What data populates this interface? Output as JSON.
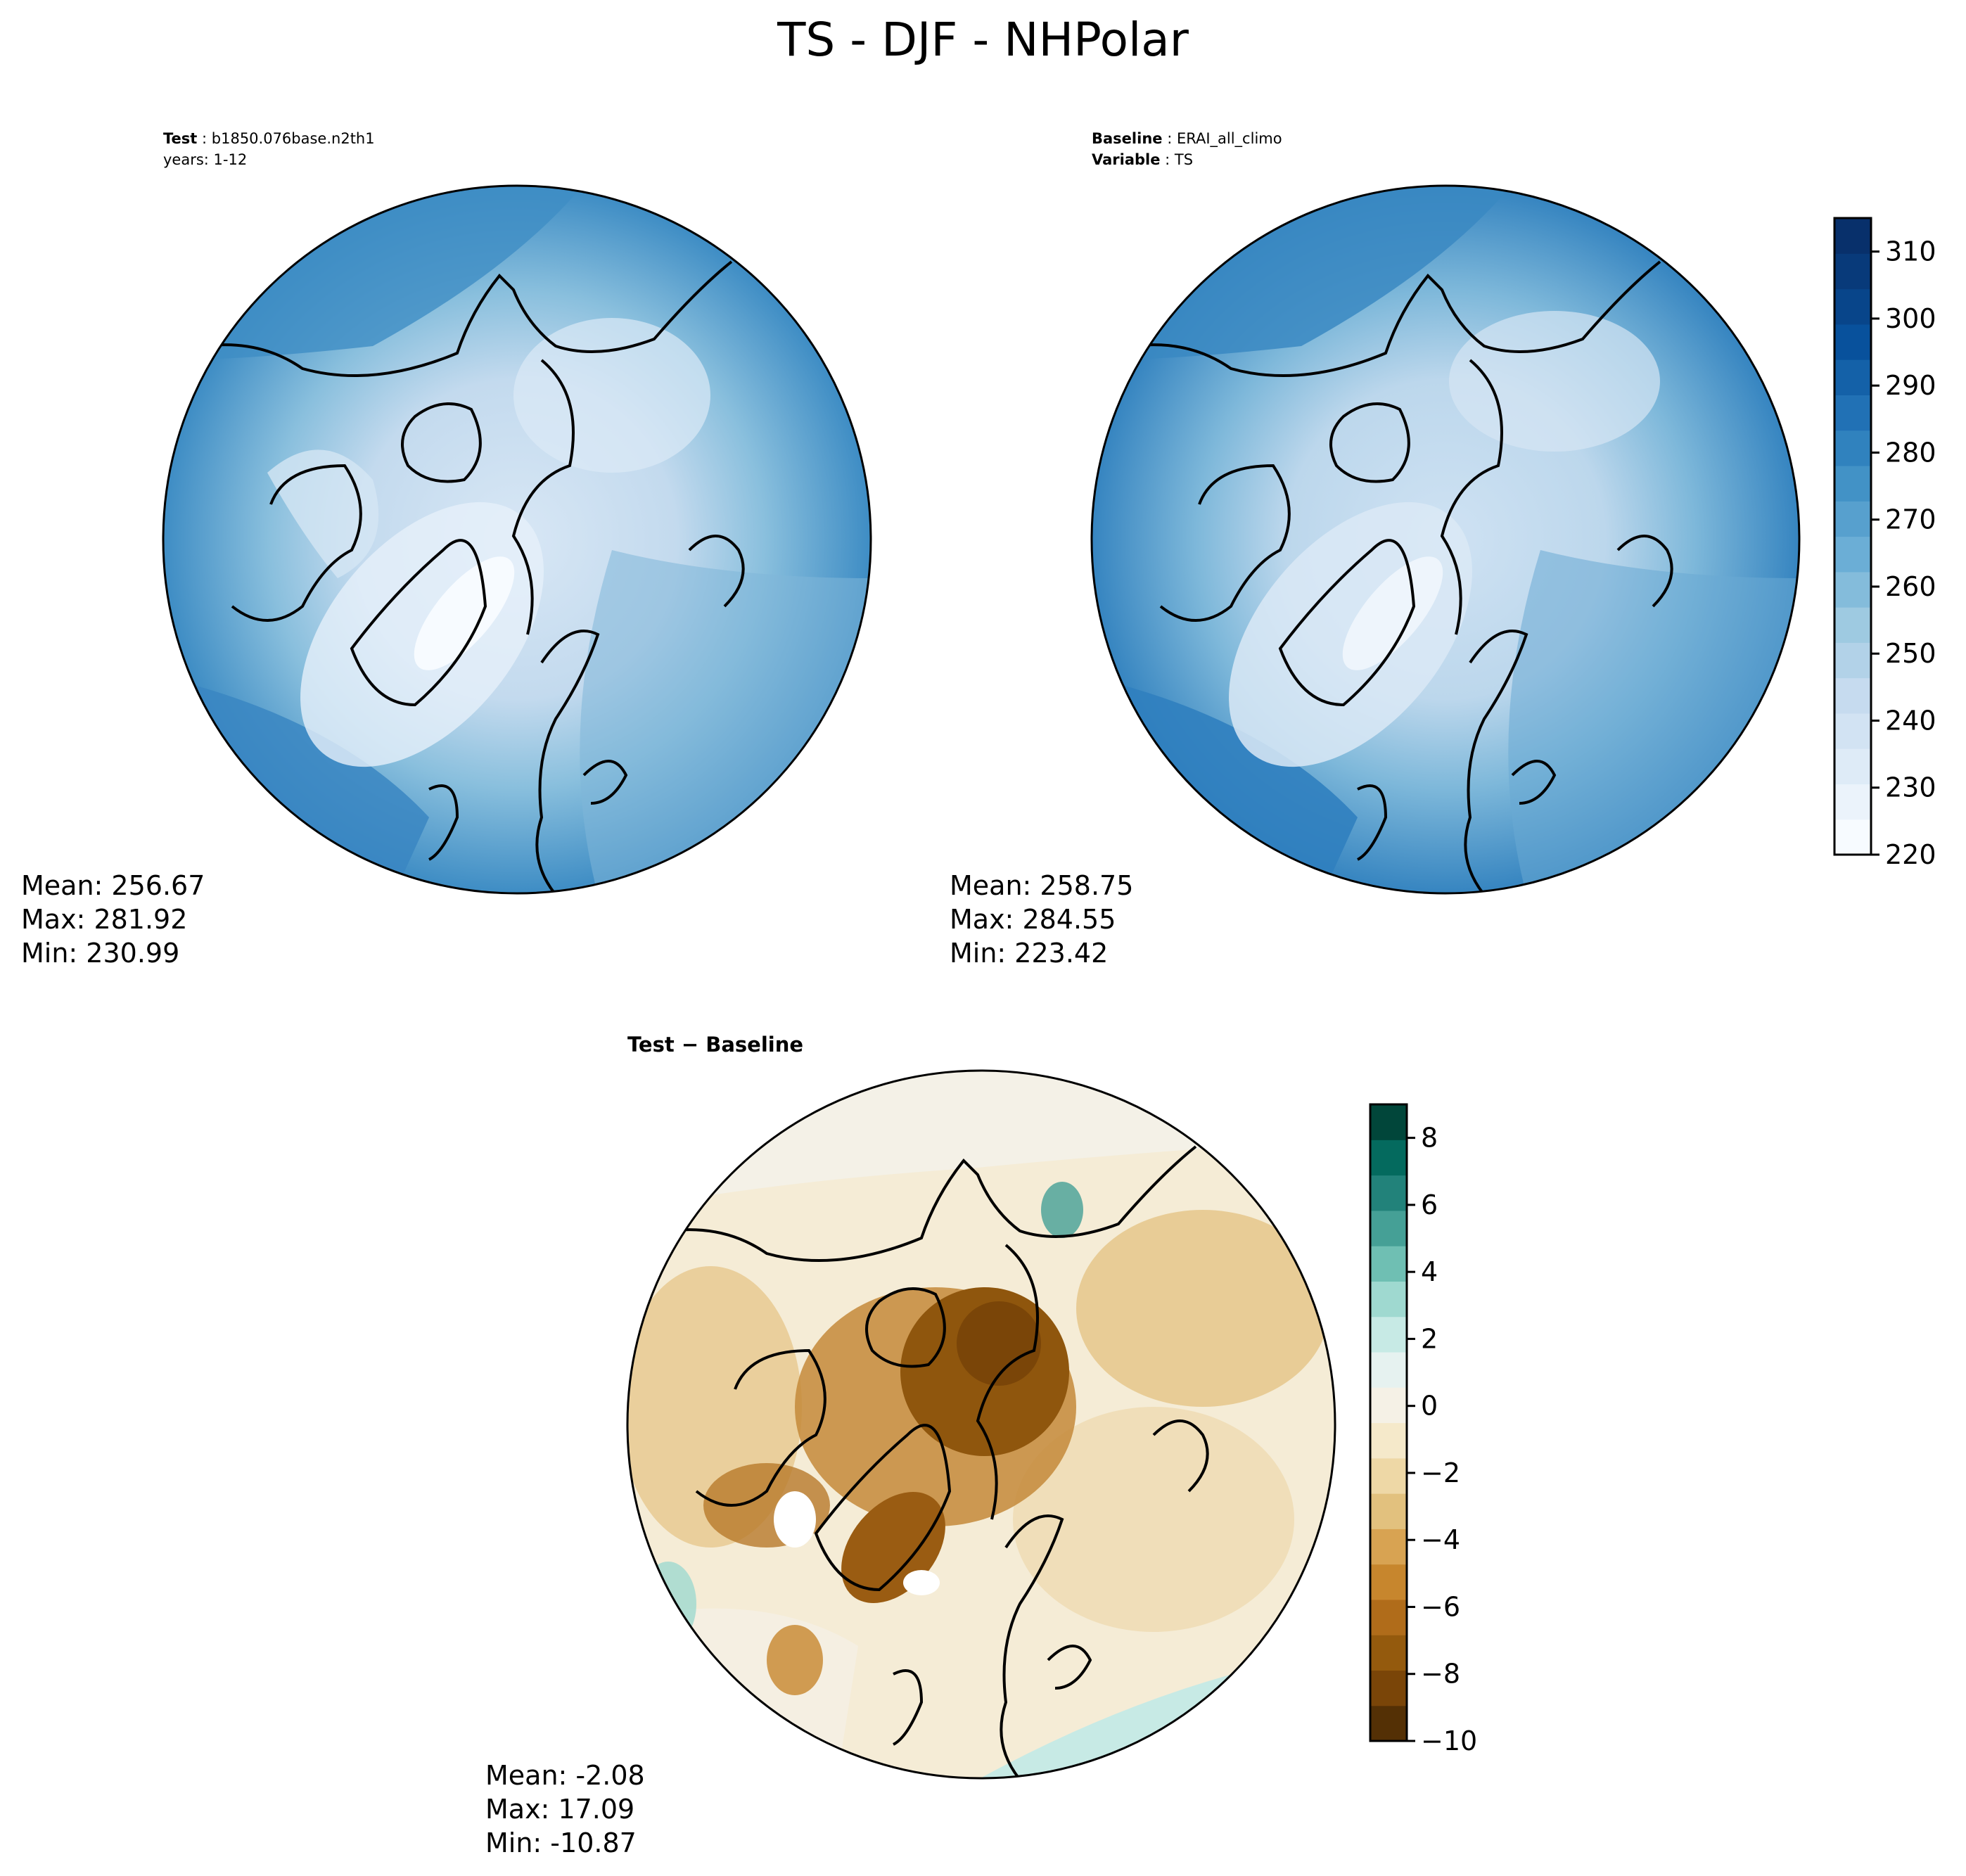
{
  "title": "TS - DJF - NHPolar",
  "panels": {
    "test": {
      "label": "Test",
      "case": "b1850.076base.n2th1",
      "years": "years: 1-12",
      "mean": "Mean: 256.67",
      "max": "Max: 281.92",
      "min": "Min: 230.99"
    },
    "baseline": {
      "label": "Baseline",
      "case": "ERAI_all_climo",
      "var_label": "Variable",
      "variable": "TS",
      "mean": "Mean: 258.75",
      "max": "Max: 284.55",
      "min": "Min: 223.42"
    },
    "diff": {
      "title": "Test − Baseline",
      "mean": "Mean: -2.08",
      "max": "Max: 17.09",
      "min": "Min: -10.87"
    }
  },
  "colorbars": {
    "absolute": {
      "colormap": "Blues",
      "range": [
        220,
        315
      ],
      "ticks": [
        "220",
        "230",
        "240",
        "250",
        "260",
        "270",
        "280",
        "290",
        "300",
        "310"
      ],
      "colors": [
        "#f7fbff",
        "#ebf3fb",
        "#deebf7",
        "#d2e3f3",
        "#c6dbef",
        "#b2d2e8",
        "#9ecae1",
        "#84bcdb",
        "#6baed6",
        "#57a0ce",
        "#4292c6",
        "#3082be",
        "#2171b5",
        "#1461a8",
        "#08519c",
        "#08458a",
        "#083a7a",
        "#08306b"
      ]
    },
    "difference": {
      "colormap": "BrBG",
      "range": [
        -10,
        9
      ],
      "ticks": [
        "−10",
        "−8",
        "−6",
        "−4",
        "−2",
        "0",
        "2",
        "4",
        "6",
        "8"
      ],
      "colors": [
        "#543005",
        "#7a4508",
        "#945a0d",
        "#b06c1a",
        "#c7862d",
        "#d8a352",
        "#e2c17e",
        "#eed8a6",
        "#f5e9ca",
        "#f5f1e6",
        "#e6f2f0",
        "#c7eae5",
        "#9fd9d0",
        "#6fbfb3",
        "#45a096",
        "#22827a",
        "#046a5e",
        "#01463a"
      ]
    }
  }
}
